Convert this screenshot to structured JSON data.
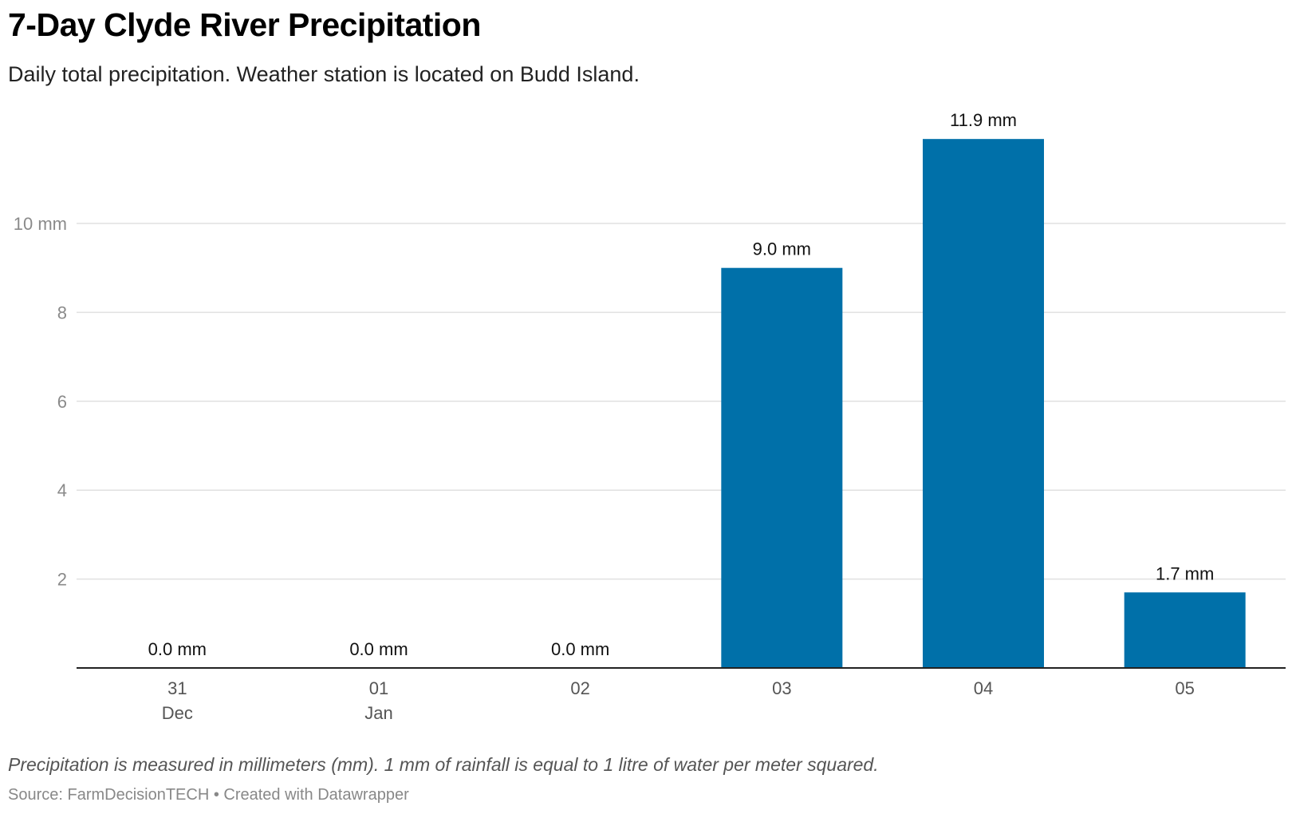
{
  "header": {
    "title": "7-Day Clyde River Precipitation",
    "subtitle": "Daily total precipitation. Weather station is located on Budd Island."
  },
  "footer": {
    "note": "Precipitation is measured in millimeters (mm). 1 mm of rainfall is equal to 1 litre of water per meter squared.",
    "source": "Source: FarmDecisionTECH • Created with Datawrapper"
  },
  "colors": {
    "bar": "#0070a9",
    "grid": "#e0e0e0",
    "axis": "#222222"
  },
  "chart_data": {
    "type": "bar",
    "categories": [
      "31",
      "01",
      "02",
      "03",
      "04",
      "05"
    ],
    "category_sublabels": [
      "Dec",
      "Jan",
      "",
      "",
      "",
      ""
    ],
    "values": [
      0.0,
      0.0,
      0.0,
      9.0,
      11.9,
      1.7
    ],
    "value_labels": [
      "0.0 mm",
      "0.0 mm",
      "0.0 mm",
      "9.0 mm",
      "11.9 mm",
      "1.7 mm"
    ],
    "y_ticks": [
      2,
      4,
      6,
      8,
      10
    ],
    "y_tick_labels": [
      "2",
      "4",
      "6",
      "8",
      "10 mm"
    ],
    "ylim": [
      0,
      12
    ],
    "grid": true
  }
}
